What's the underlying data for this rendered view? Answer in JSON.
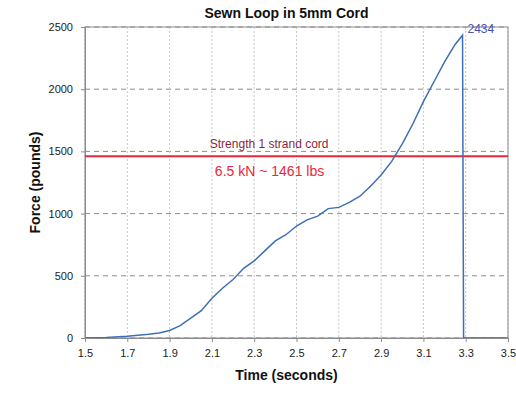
{
  "chart_data": {
    "type": "line",
    "title": "Sewn Loop in 5mm Cord",
    "x_label": "Time (seconds)",
    "y_label": "Force (pounds)",
    "x": [
      1.5,
      1.6,
      1.7,
      1.8,
      1.85,
      1.9,
      1.95,
      2.0,
      2.05,
      2.1,
      2.15,
      2.2,
      2.25,
      2.3,
      2.35,
      2.4,
      2.45,
      2.5,
      2.55,
      2.6,
      2.65,
      2.7,
      2.75,
      2.8,
      2.85,
      2.9,
      2.95,
      3.0,
      3.05,
      3.1,
      3.15,
      3.2,
      3.25,
      3.285,
      3.29,
      3.35,
      3.5
    ],
    "values": [
      0,
      5,
      15,
      30,
      40,
      60,
      100,
      160,
      220,
      320,
      400,
      470,
      560,
      620,
      700,
      780,
      830,
      900,
      950,
      980,
      1040,
      1050,
      1090,
      1140,
      1220,
      1310,
      1420,
      1560,
      1720,
      1900,
      2060,
      2220,
      2360,
      2434,
      0,
      0,
      0
    ],
    "color": "#3d6fb6",
    "peak_value": 2434,
    "reference_line": {
      "value": 1461,
      "label": "Strength 1 strand cord",
      "value_label": "6.5 kN ~ 1461 lbs",
      "color": "#e8283a"
    },
    "xlim": [
      1.5,
      3.5
    ],
    "ylim": [
      0,
      2500
    ],
    "xticks": [
      1.5,
      1.7,
      1.9,
      2.1,
      2.3,
      2.5,
      2.7,
      2.9,
      3.1,
      3.3,
      3.5
    ],
    "yticks": [
      0,
      500,
      1000,
      1500,
      2000,
      2500
    ],
    "grid": true
  }
}
